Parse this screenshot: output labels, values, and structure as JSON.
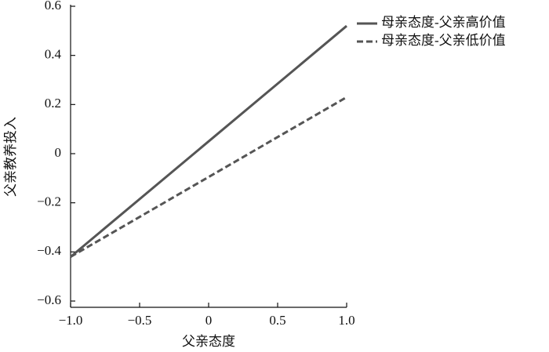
{
  "chart_data": {
    "type": "line",
    "x_label": "父亲态度",
    "y_label": "父亲教养投入",
    "x": [
      -1,
      1
    ],
    "series": [
      {
        "name": "母亲态度-父亲高价值",
        "color": "#555555",
        "dash": "solid",
        "values": [
          -0.42,
          0.52
        ]
      },
      {
        "name": "母亲态度-父亲低价值",
        "color": "#555555",
        "dash": "dashed",
        "values": [
          -0.42,
          0.23
        ]
      }
    ],
    "xlim": [
      -1,
      1
    ],
    "xticks": [
      {
        "value": -1,
        "label": "−1.0"
      },
      {
        "value": -0.5,
        "label": "−0.5"
      },
      0,
      0.5,
      {
        "value": 1,
        "label": "1.0"
      }
    ],
    "ylim": [
      -0.6,
      0.6
    ],
    "yticks": [
      0.6,
      0.4,
      0.2,
      0,
      {
        "value": -0.2,
        "label": "−0.2"
      },
      {
        "value": -0.4,
        "label": "−0.4"
      },
      {
        "value": -0.6,
        "label": "−0.6"
      }
    ],
    "grid": false
  }
}
